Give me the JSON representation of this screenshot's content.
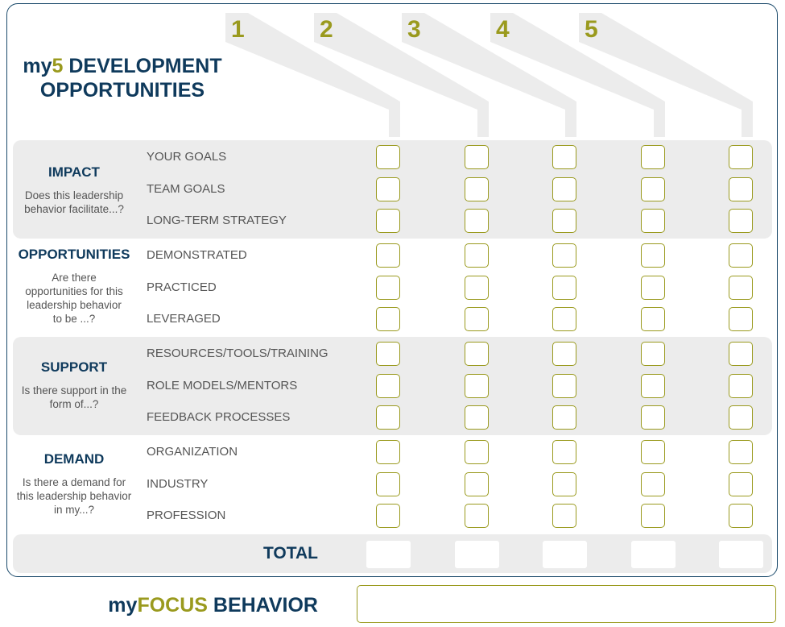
{
  "title": {
    "my": "my",
    "five": "5",
    "line1_rest": " DEVELOPMENT",
    "line2": "OPPORTUNITIES"
  },
  "columns": [
    "1",
    "2",
    "3",
    "4",
    "5"
  ],
  "categories": [
    {
      "title": "IMPACT",
      "question": "Does this leadership behavior facilitate...?",
      "rows": [
        "YOUR GOALS",
        "TEAM GOALS",
        "LONG-TERM STRATEGY"
      ]
    },
    {
      "title": "OPPORTUNITIES",
      "question": "Are there opportunities for this leadership behavior to be ...?",
      "rows": [
        "DEMONSTRATED",
        "PRACTICED",
        "LEVERAGED"
      ]
    },
    {
      "title": "SUPPORT",
      "question": "Is there support in the form of...?",
      "rows": [
        "RESOURCES/TOOLS/TRAINING",
        "ROLE MODELS/MENTORS",
        "FEEDBACK PROCESSES"
      ]
    },
    {
      "title": "DEMAND",
      "question": "Is there a demand for this leadership behavior in my...?",
      "rows": [
        "ORGANIZATION",
        "INDUSTRY",
        "PROFESSION"
      ]
    }
  ],
  "total": {
    "label": "TOTAL"
  },
  "focus": {
    "my": "my",
    "focus": "FOCUS",
    "behavior": " BEHAVIOR"
  },
  "colors": {
    "navy": "#0f3a5c",
    "olive": "#9a9a1e",
    "band": "#ececec",
    "text": "#555555"
  }
}
